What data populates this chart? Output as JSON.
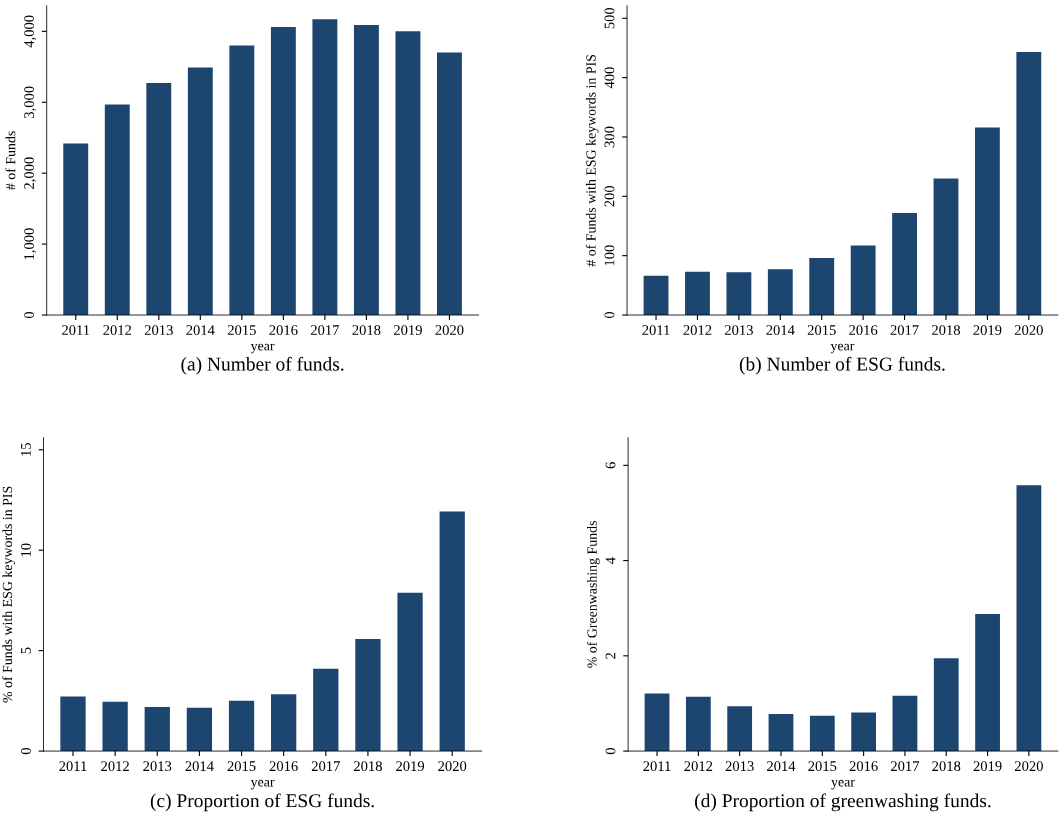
{
  "chart_data": [
    {
      "type": "bar",
      "categories": [
        "2011",
        "2012",
        "2013",
        "2014",
        "2015",
        "2016",
        "2017",
        "2018",
        "2019",
        "2020"
      ],
      "values": [
        2420,
        2970,
        3270,
        3490,
        3800,
        4060,
        4170,
        4090,
        4000,
        3700
      ],
      "color": "#1c4670",
      "xlabel": "year",
      "ylabel": "# of Funds",
      "ylim": [
        0,
        4360
      ],
      "yticks": [
        0,
        {
          "value": 1000,
          "label": "1,000"
        },
        {
          "value": 2000,
          "label": "2,000"
        },
        {
          "value": 3000,
          "label": "3,000"
        },
        {
          "value": 4000,
          "label": "4,000"
        }
      ],
      "grid": false,
      "annotations": [
        "(a) Number of funds."
      ]
    },
    {
      "type": "bar",
      "categories": [
        "2011",
        "2012",
        "2013",
        "2014",
        "2015",
        "2016",
        "2017",
        "2018",
        "2019",
        "2020"
      ],
      "values": [
        66,
        73,
        72,
        77,
        96,
        117,
        172,
        230,
        316,
        443
      ],
      "color": "#1c4670",
      "xlabel": "year",
      "ylabel": "# of Funds with ESG keywords in PIS",
      "ylim": [
        0,
        521
      ],
      "yticks": [
        0,
        100,
        200,
        300,
        400,
        500
      ],
      "grid": false,
      "annotations": [
        "(b) Number of ESG funds."
      ]
    },
    {
      "type": "bar",
      "categories": [
        "2011",
        "2012",
        "2013",
        "2014",
        "2015",
        "2016",
        "2017",
        "2018",
        "2019",
        "2020"
      ],
      "values": [
        2.72,
        2.45,
        2.19,
        2.16,
        2.51,
        2.83,
        4.1,
        5.58,
        7.88,
        11.93
      ],
      "color": "#1c4670",
      "xlabel": "year",
      "ylabel": "% of Funds with ESG keywords in PIS",
      "ylim": [
        0,
        15.6
      ],
      "yticks": [
        0,
        5,
        10,
        15
      ],
      "grid": false,
      "annotations": [
        "(c) Proportion of ESG funds."
      ]
    },
    {
      "type": "bar",
      "categories": [
        "2011",
        "2012",
        "2013",
        "2014",
        "2015",
        "2016",
        "2017",
        "2018",
        "2019",
        "2020"
      ],
      "values": [
        1.21,
        1.14,
        0.94,
        0.78,
        0.74,
        0.81,
        1.16,
        1.95,
        2.88,
        5.58
      ],
      "color": "#1c4670",
      "xlabel": "year",
      "ylabel": "% of Greenwashing Funds",
      "ylim": [
        0,
        6.58
      ],
      "yticks": [
        0,
        2,
        4,
        6
      ],
      "grid": false,
      "annotations": [
        "(d) Proportion of greenwashing funds."
      ]
    }
  ]
}
